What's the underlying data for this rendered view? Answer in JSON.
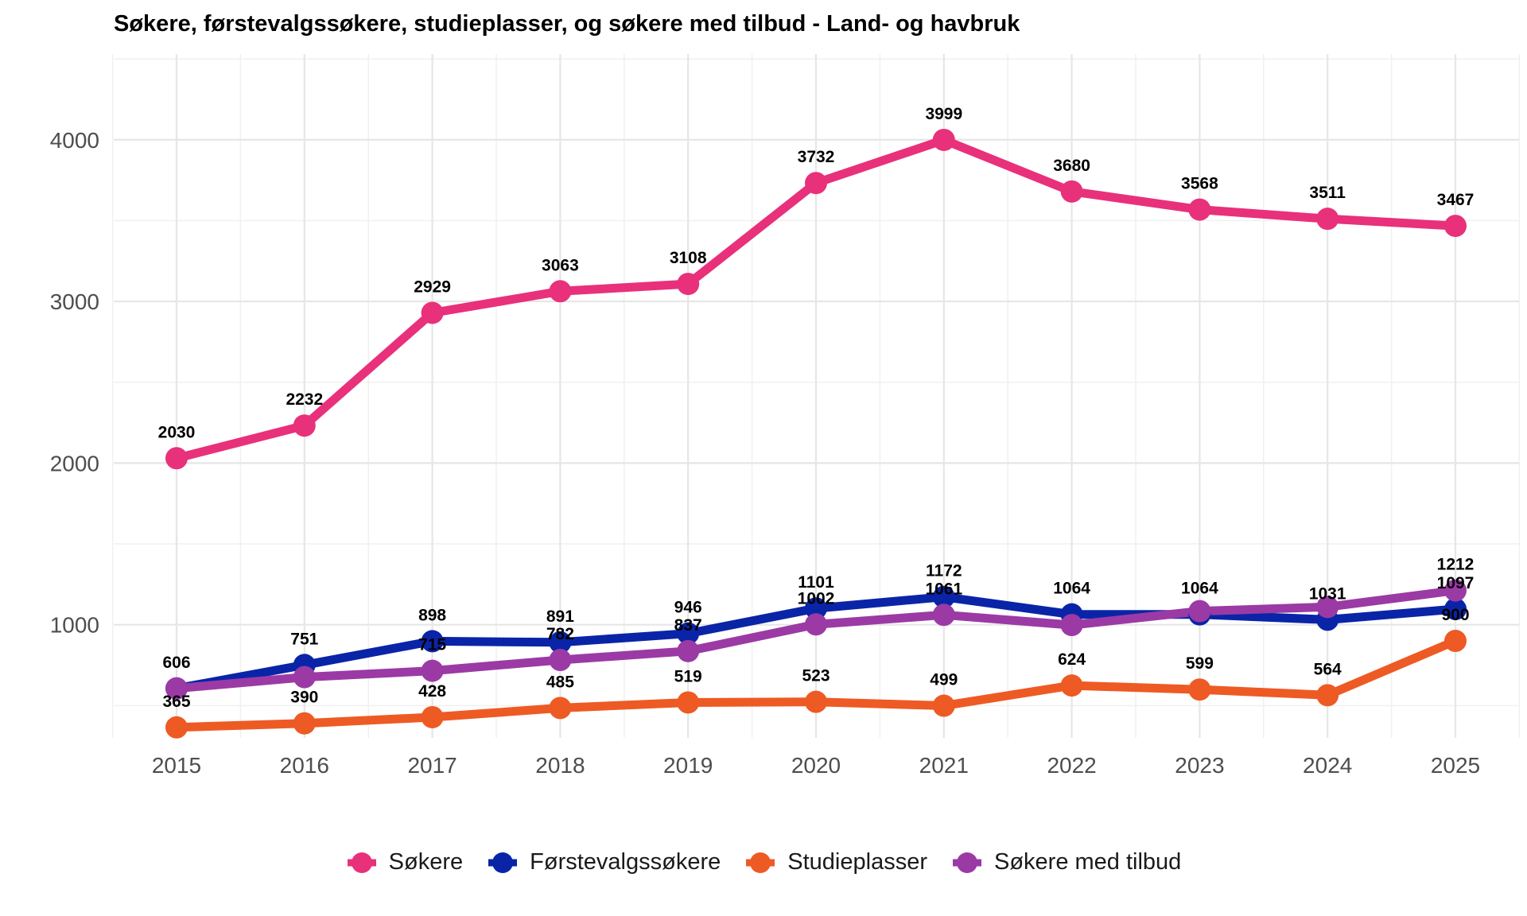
{
  "chart_data": {
    "type": "line",
    "title": "Søkere, førstevalgssøkere, studieplasser, og søkere med tilbud - Land- og havbruk",
    "xlabel": "",
    "ylabel": "",
    "x": [
      "2015",
      "2016",
      "2017",
      "2018",
      "2019",
      "2020",
      "2021",
      "2022",
      "2023",
      "2024",
      "2025"
    ],
    "ylim": [
      300,
      4530
    ],
    "yticks": [
      1000,
      2000,
      3000,
      4000
    ],
    "grid": true,
    "legend_position": "bottom",
    "series": [
      {
        "name": "Søkere",
        "color": "#E8317A",
        "values": [
          2030,
          2232,
          2929,
          3063,
          3108,
          3732,
          3999,
          3680,
          3568,
          3511,
          3467
        ]
      },
      {
        "name": "Førstevalgssøkere",
        "color": "#0A24A8",
        "values": [
          606,
          751,
          898,
          891,
          946,
          1101,
          1172,
          1064,
          1064,
          1031,
          1097
        ]
      },
      {
        "name": "Studieplasser",
        "color": "#EE5A24",
        "values": [
          365,
          390,
          428,
          485,
          519,
          523,
          499,
          624,
          599,
          564,
          900
        ]
      },
      {
        "name": "Søkere med tilbud",
        "color": "#9B3AA5",
        "values": [
          606,
          676,
          715,
          782,
          837,
          1002,
          1061,
          998,
          1084,
          1110,
          1212
        ]
      }
    ],
    "data_labels": [
      {
        "series": 0,
        "labels": [
          "2030",
          "2232",
          "2929",
          "3063",
          "3108",
          "3732",
          "3999",
          "3680",
          "3568",
          "3511",
          "3467"
        ]
      },
      {
        "series": 1,
        "labels": [
          "606",
          "751",
          "898",
          "891",
          "946",
          "1101",
          "1172",
          "1064",
          "1064",
          "1031",
          "1097"
        ]
      },
      {
        "series": 2,
        "labels": [
          "365",
          "390",
          "428",
          "485",
          "519",
          "523",
          "499",
          "624",
          "599",
          "564",
          "900"
        ]
      },
      {
        "series": 3,
        "labels": [
          null,
          null,
          "715",
          "782",
          "837",
          "1002",
          "1061",
          null,
          null,
          null,
          "1212"
        ]
      }
    ]
  }
}
